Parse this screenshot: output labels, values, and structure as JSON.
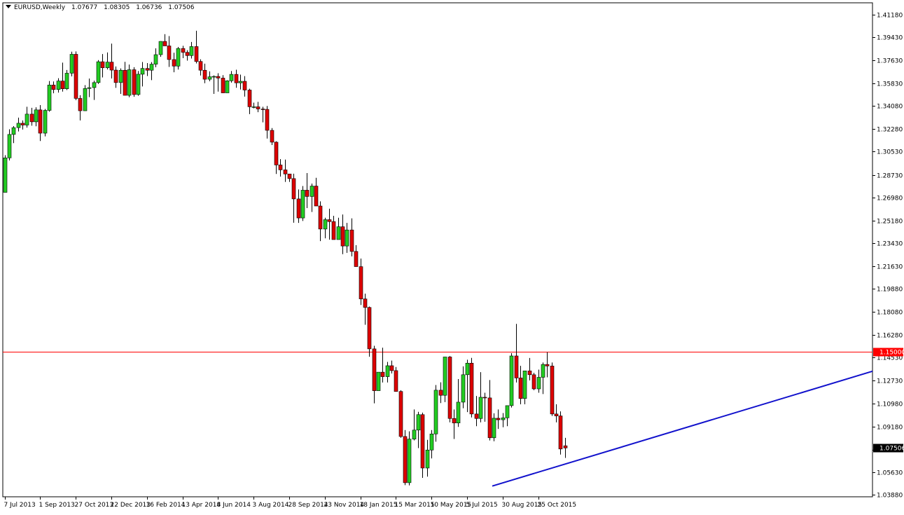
{
  "header": {
    "symbol": "EURUSD",
    "timeframe": "Weekly",
    "open": "1.07677",
    "high": "1.08305",
    "low": "1.06736",
    "close": "1.07506"
  },
  "colors": {
    "bull": "#22cc22",
    "bear": "#dd0000",
    "wick": "#000000",
    "resistance": "#ff0000",
    "trendline": "#1111cc",
    "axis": "#000000"
  },
  "chart_data": {
    "type": "candlestick",
    "symbol": "EURUSD",
    "timeframe": "Weekly",
    "ylim": [
      1.0388,
      1.4218
    ],
    "y_ticks": [
      "1.41180",
      "1.39430",
      "1.37630",
      "1.35830",
      "1.34080",
      "1.32280",
      "1.30530",
      "1.28730",
      "1.26980",
      "1.25180",
      "1.23430",
      "1.21630",
      "1.19880",
      "1.18080",
      "1.16280",
      "1.14530",
      "1.12730",
      "1.10980",
      "1.09180",
      "1.07380",
      "1.05630",
      "1.03880"
    ],
    "x_ticks": [
      "7 Jul 2013",
      "1 Sep 2013",
      "27 Oct 2013",
      "22 Dec 2013",
      "16 Feb 2014",
      "13 Apr 2014",
      "8 Jun 2014",
      "3 Aug 2014",
      "28 Sep 2014",
      "23 Nov 2014",
      "18 Jan 2015",
      "15 Mar 2015",
      "10 May 2015",
      "5 Jul 2015",
      "30 Aug 2015",
      "25 Oct 2015"
    ],
    "resistance_level": 1.15,
    "resistance_label": "1.15000",
    "last_price_label": "1.07506",
    "trendline": {
      "from": {
        "date": "8 Mar 2015",
        "price": 1.0455
      },
      "to": {
        "date": "3 Jan 2016",
        "price": 1.1347
      }
    },
    "candles_ohlc": [
      [
        1.2737,
        1.3026,
        1.2755,
        1.3005
      ],
      [
        1.3005,
        1.3227,
        1.2985,
        1.3187
      ],
      [
        1.3187,
        1.3252,
        1.312,
        1.324
      ],
      [
        1.324,
        1.3318,
        1.321,
        1.3274
      ],
      [
        1.3274,
        1.3296,
        1.3225,
        1.326
      ],
      [
        1.326,
        1.3402,
        1.324,
        1.3345
      ],
      [
        1.3345,
        1.3394,
        1.3255,
        1.3285
      ],
      [
        1.3285,
        1.3398,
        1.325,
        1.3378
      ],
      [
        1.3378,
        1.3415,
        1.3136,
        1.3197
      ],
      [
        1.3197,
        1.3385,
        1.3172,
        1.3374
      ],
      [
        1.3374,
        1.3602,
        1.3364,
        1.3571
      ],
      [
        1.3571,
        1.3599,
        1.3507,
        1.3536
      ],
      [
        1.3536,
        1.3624,
        1.3512,
        1.3602
      ],
      [
        1.3602,
        1.3745,
        1.352,
        1.3542
      ],
      [
        1.3542,
        1.3688,
        1.3532,
        1.3663
      ],
      [
        1.3663,
        1.383,
        1.3638,
        1.381
      ],
      [
        1.381,
        1.3832,
        1.3453,
        1.3467
      ],
      [
        1.3467,
        1.3492,
        1.3296,
        1.3371
      ],
      [
        1.3371,
        1.357,
        1.3371,
        1.3544
      ],
      [
        1.3544,
        1.3621,
        1.3477,
        1.3551
      ],
      [
        1.3551,
        1.3605,
        1.3455,
        1.359
      ],
      [
        1.359,
        1.3765,
        1.358,
        1.3752
      ],
      [
        1.3752,
        1.3812,
        1.363,
        1.3705
      ],
      [
        1.3705,
        1.3824,
        1.3692,
        1.3749
      ],
      [
        1.3749,
        1.3893,
        1.3622,
        1.3687
      ],
      [
        1.3687,
        1.3715,
        1.3549,
        1.359
      ],
      [
        1.359,
        1.37,
        1.3502,
        1.3686
      ],
      [
        1.3686,
        1.3751,
        1.3585,
        1.3491
      ],
      [
        1.3491,
        1.373,
        1.3476,
        1.369
      ],
      [
        1.369,
        1.371,
        1.348,
        1.3497
      ],
      [
        1.3497,
        1.368,
        1.3488,
        1.3655
      ],
      [
        1.3655,
        1.375,
        1.356,
        1.37
      ],
      [
        1.37,
        1.3742,
        1.3641,
        1.3686
      ],
      [
        1.3686,
        1.3749,
        1.3609,
        1.3733
      ],
      [
        1.3733,
        1.3856,
        1.3709,
        1.3807
      ],
      [
        1.3807,
        1.3911,
        1.379,
        1.391
      ],
      [
        1.391,
        1.3966,
        1.3883,
        1.3875
      ],
      [
        1.3875,
        1.3951,
        1.3712,
        1.3769
      ],
      [
        1.3769,
        1.3822,
        1.367,
        1.3718
      ],
      [
        1.3718,
        1.3867,
        1.3691,
        1.3855
      ],
      [
        1.3855,
        1.3876,
        1.378,
        1.3825
      ],
      [
        1.3825,
        1.3842,
        1.3761,
        1.38
      ],
      [
        1.38,
        1.3906,
        1.3777,
        1.387
      ],
      [
        1.387,
        1.3993,
        1.3739,
        1.3754
      ],
      [
        1.3754,
        1.3771,
        1.3645,
        1.3686
      ],
      [
        1.3686,
        1.3737,
        1.3585,
        1.3616
      ],
      [
        1.3616,
        1.3677,
        1.36,
        1.3635
      ],
      [
        1.3635,
        1.3646,
        1.3502,
        1.3638
      ],
      [
        1.3638,
        1.3663,
        1.352,
        1.3625
      ],
      [
        1.3625,
        1.3648,
        1.355,
        1.351
      ],
      [
        1.351,
        1.3608,
        1.3525,
        1.3604
      ],
      [
        1.3604,
        1.368,
        1.359,
        1.3654
      ],
      [
        1.3654,
        1.369,
        1.355,
        1.3588
      ],
      [
        1.3588,
        1.3652,
        1.3536,
        1.36
      ],
      [
        1.36,
        1.364,
        1.3481,
        1.3532
      ],
      [
        1.3532,
        1.3542,
        1.3345,
        1.3402
      ],
      [
        1.3402,
        1.3434,
        1.339,
        1.3402
      ],
      [
        1.3402,
        1.344,
        1.336,
        1.3385
      ],
      [
        1.3385,
        1.3402,
        1.3281,
        1.3382
      ],
      [
        1.3382,
        1.3408,
        1.3155,
        1.3219
      ],
      [
        1.3219,
        1.3237,
        1.3105,
        1.3127
      ],
      [
        1.3127,
        1.3134,
        1.288,
        1.295
      ],
      [
        1.295,
        1.2995,
        1.286,
        1.2912
      ],
      [
        1.2912,
        1.2992,
        1.2818,
        1.288
      ],
      [
        1.288,
        1.2859,
        1.2818,
        1.2844
      ],
      [
        1.2844,
        1.2882,
        1.2501,
        1.2686
      ],
      [
        1.2686,
        1.276,
        1.25,
        1.2538
      ],
      [
        1.2538,
        1.2786,
        1.2515,
        1.2754
      ],
      [
        1.2754,
        1.2887,
        1.2615,
        1.2705
      ],
      [
        1.2705,
        1.2805,
        1.2585,
        1.2786
      ],
      [
        1.2786,
        1.285,
        1.2635,
        1.2631
      ],
      [
        1.2631,
        1.2667,
        1.2358,
        1.2452
      ],
      [
        1.2452,
        1.254,
        1.238,
        1.2525
      ],
      [
        1.2525,
        1.261,
        1.237,
        1.251
      ],
      [
        1.251,
        1.2555,
        1.24,
        1.237
      ],
      [
        1.237,
        1.254,
        1.24,
        1.247
      ],
      [
        1.247,
        1.2565,
        1.2257,
        1.232
      ],
      [
        1.232,
        1.25,
        1.2267,
        1.2445
      ],
      [
        1.2445,
        1.2535,
        1.224,
        1.2278
      ],
      [
        1.2278,
        1.2327,
        1.2221,
        1.216
      ],
      [
        1.216,
        1.2223,
        1.1862,
        1.1909
      ],
      [
        1.1909,
        1.195,
        1.1708,
        1.1843
      ],
      [
        1.1843,
        1.185,
        1.146,
        1.1521
      ],
      [
        1.1521,
        1.1545,
        1.1098,
        1.1196
      ],
      [
        1.1196,
        1.1325,
        1.127,
        1.134
      ],
      [
        1.134,
        1.153,
        1.126,
        1.1305
      ],
      [
        1.1305,
        1.142,
        1.126,
        1.139
      ],
      [
        1.139,
        1.143,
        1.133,
        1.1352
      ],
      [
        1.1352,
        1.138,
        1.119,
        1.119
      ],
      [
        1.119,
        1.12,
        1.083,
        1.084
      ],
      [
        1.084,
        1.089,
        1.0462,
        1.0481
      ],
      [
        1.0481,
        1.088,
        1.046,
        1.082
      ],
      [
        1.082,
        1.105,
        1.081,
        1.089
      ],
      [
        1.089,
        1.1032,
        1.075,
        1.101
      ],
      [
        1.101,
        1.1026,
        1.0519,
        1.0595
      ],
      [
        1.0595,
        1.0814,
        1.0528,
        1.0735
      ],
      [
        1.0735,
        1.089,
        1.067,
        1.086
      ],
      [
        1.086,
        1.124,
        1.08,
        1.12
      ],
      [
        1.12,
        1.1261,
        1.11,
        1.116
      ],
      [
        1.116,
        1.1455,
        1.1107,
        1.1458
      ],
      [
        1.1458,
        1.1465,
        1.095,
        1.098
      ],
      [
        1.098,
        1.105,
        1.0821,
        1.0945
      ],
      [
        1.0945,
        1.1286,
        1.0915,
        1.1107
      ],
      [
        1.1107,
        1.1385,
        1.106,
        1.132
      ],
      [
        1.132,
        1.1437,
        1.103,
        1.141
      ],
      [
        1.141,
        1.1451,
        1.0988,
        1.1015
      ],
      [
        1.1015,
        1.1155,
        1.092,
        1.098
      ],
      [
        1.098,
        1.134,
        1.095,
        1.1145
      ],
      [
        1.1145,
        1.118,
        1.0955,
        1.114
      ],
      [
        1.114,
        1.1279,
        1.0809,
        1.083
      ],
      [
        1.083,
        1.102,
        1.0803,
        1.0982
      ],
      [
        1.0982,
        1.105,
        1.0899,
        1.097
      ],
      [
        1.097,
        1.1022,
        1.0912,
        1.0985
      ],
      [
        1.0985,
        1.108,
        1.092,
        1.108
      ],
      [
        1.108,
        1.1488,
        1.1065,
        1.1466
      ],
      [
        1.1466,
        1.1715,
        1.126,
        1.1295
      ],
      [
        1.1295,
        1.1389,
        1.109,
        1.1135
      ],
      [
        1.1135,
        1.133,
        1.109,
        1.135
      ],
      [
        1.135,
        1.145,
        1.1276,
        1.132
      ],
      [
        1.132,
        1.1335,
        1.12,
        1.121
      ],
      [
        1.121,
        1.136,
        1.118,
        1.13
      ],
      [
        1.13,
        1.1415,
        1.117,
        1.14
      ],
      [
        1.14,
        1.1495,
        1.13,
        1.1388
      ],
      [
        1.1388,
        1.1415,
        1.1,
        1.1015
      ],
      [
        1.1015,
        1.109,
        1.095,
        1.1
      ],
      [
        1.1,
        1.1035,
        1.07,
        1.0743
      ],
      [
        1.0768,
        1.083,
        1.0674,
        1.0751
      ]
    ]
  }
}
